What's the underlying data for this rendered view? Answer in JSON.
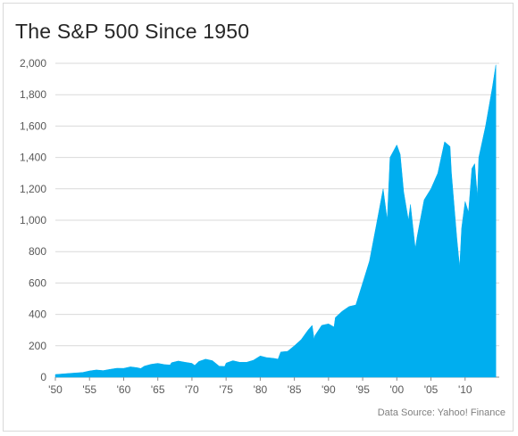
{
  "title": "The S&P 500 Since 1950",
  "source": "Data Source: Yahoo! Finance",
  "chart_data": {
    "type": "area",
    "title": "The S&P 500 Since 1950",
    "xlabel": "",
    "ylabel": "",
    "xlim": [
      1950,
      2015
    ],
    "ylim": [
      0,
      2000
    ],
    "grid": true,
    "color": "#00aeef",
    "y_ticks": [
      0,
      200,
      400,
      600,
      800,
      1000,
      1200,
      1400,
      1600,
      1800,
      2000
    ],
    "y_tick_labels": [
      "0",
      "200",
      "400",
      "600",
      "800",
      "1,000",
      "1,200",
      "1,400",
      "1,600",
      "1,800",
      "2,000"
    ],
    "x_ticks": [
      1950,
      1955,
      1960,
      1965,
      1970,
      1975,
      1980,
      1985,
      1990,
      1995,
      2000,
      2005,
      2010
    ],
    "x_tick_labels": [
      "'50",
      "'55",
      "'60",
      "'65",
      "'70",
      "'75",
      "'80",
      "'85",
      "'90",
      "'95",
      "'00",
      "'05",
      "'10"
    ],
    "x": [
      1950,
      1952,
      1954,
      1955,
      1956,
      1957,
      1958,
      1959,
      1960,
      1961,
      1962,
      1962.5,
      1963,
      1964,
      1965,
      1966,
      1966.8,
      1967,
      1968,
      1969,
      1970,
      1970.4,
      1971,
      1972,
      1973,
      1974,
      1974.8,
      1975,
      1976,
      1977,
      1978,
      1979,
      1980,
      1980.9,
      1982,
      1982.6,
      1983,
      1984,
      1985,
      1986,
      1987,
      1987.6,
      1987.9,
      1988,
      1989,
      1990,
      1990.8,
      1991,
      1992,
      1993,
      1994,
      1995,
      1996,
      1997,
      1998,
      1998.6,
      1999,
      2000,
      2000.5,
      2001,
      2001.7,
      2002,
      2002.7,
      2003,
      2004,
      2005,
      2006,
      2007,
      2007.8,
      2008,
      2008.8,
      2009.2,
      2009.5,
      2010,
      2010.5,
      2011,
      2011.4,
      2011.8,
      2012,
      2013,
      2014,
      2014.5
    ],
    "values": [
      17,
      24,
      30,
      40,
      46,
      42,
      50,
      57,
      56,
      66,
      60,
      55,
      70,
      82,
      88,
      80,
      78,
      92,
      103,
      95,
      88,
      75,
      100,
      115,
      105,
      70,
      68,
      90,
      105,
      95,
      95,
      108,
      135,
      125,
      120,
      115,
      160,
      165,
      200,
      240,
      300,
      330,
      240,
      265,
      330,
      340,
      320,
      380,
      420,
      450,
      460,
      600,
      740,
      970,
      1200,
      1000,
      1400,
      1480,
      1420,
      1180,
      1000,
      1100,
      820,
      900,
      1130,
      1200,
      1300,
      1500,
      1470,
      1300,
      880,
      700,
      950,
      1120,
      1050,
      1330,
      1360,
      1150,
      1400,
      1600,
      1850,
      1990
    ]
  }
}
